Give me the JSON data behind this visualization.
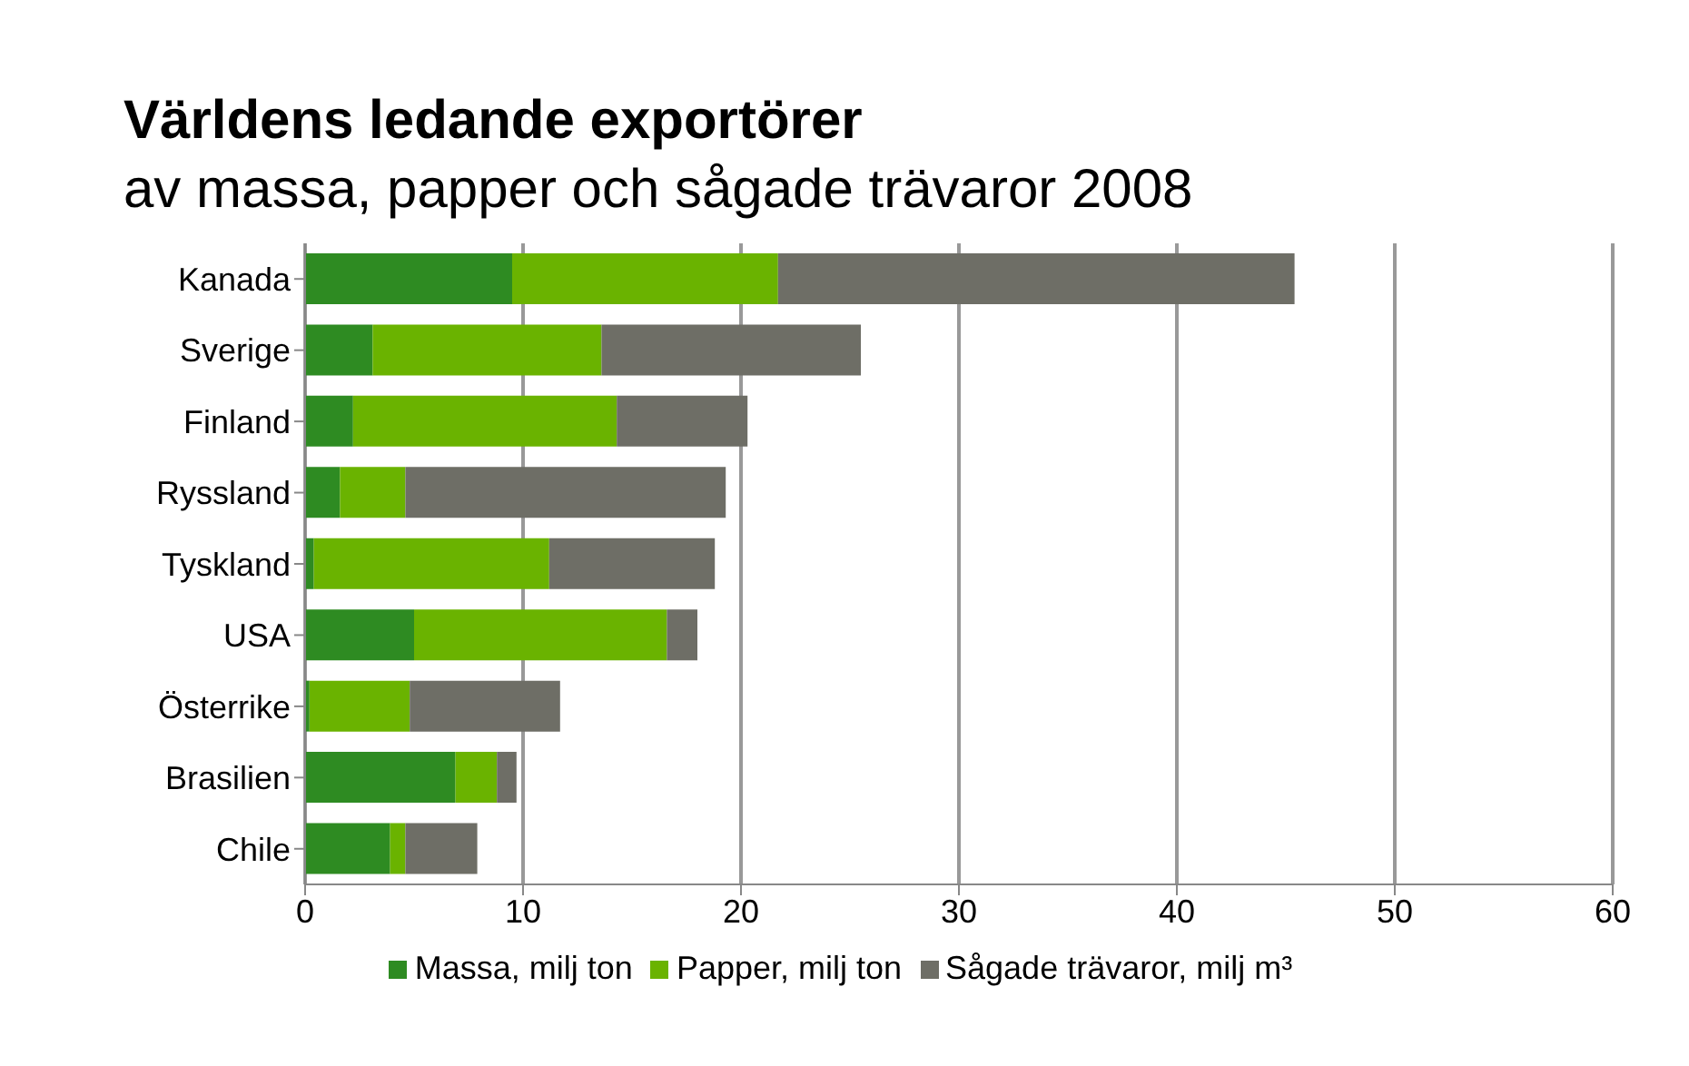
{
  "chart_data": {
    "type": "bar",
    "orientation": "horizontal",
    "stacked": true,
    "title": "Världens ledande exportörer\nav massa, papper och sågade trävaror 2008",
    "categories": [
      "Kanada",
      "Sverige",
      "Finland",
      "Ryssland",
      "Tyskland",
      "USA",
      "Österrike",
      "Brasilien",
      "Chile"
    ],
    "series": [
      {
        "name": "Massa, milj ton",
        "color": "#2e8b22",
        "values": [
          9.5,
          3.1,
          2.2,
          1.6,
          0.4,
          5.0,
          0.2,
          6.9,
          3.9
        ]
      },
      {
        "name": "Papper, milj ton",
        "color": "#6ab300",
        "values": [
          12.2,
          10.5,
          12.1,
          3.0,
          10.8,
          11.6,
          4.6,
          1.9,
          0.7
        ]
      },
      {
        "name": "Sågade trävaror, milj m³",
        "color": "#6e6e66",
        "values": [
          23.7,
          11.9,
          6.0,
          14.7,
          7.6,
          1.4,
          6.9,
          0.9,
          3.3
        ]
      }
    ],
    "xlim": [
      0,
      60
    ],
    "xticks": [
      0,
      10,
      20,
      30,
      40,
      50,
      60
    ],
    "grid": "x",
    "legend": "bottom"
  }
}
